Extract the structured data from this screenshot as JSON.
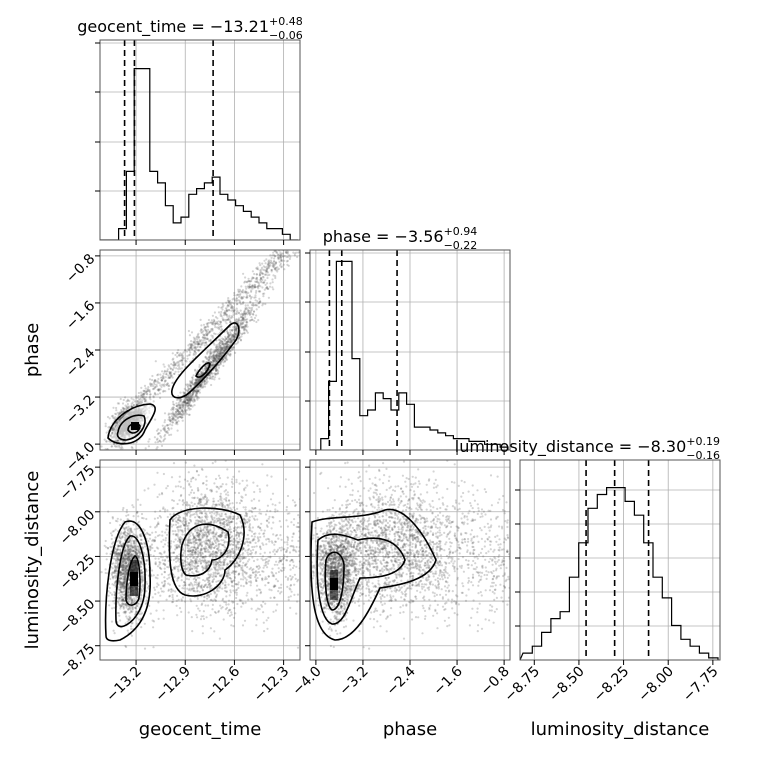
{
  "chart_data": {
    "type": "corner",
    "parameters": [
      {
        "name": "geocent_time",
        "range": [
          -13.42,
          -12.2
        ],
        "ticks": [
          -13.2,
          -12.9,
          -12.6,
          -12.3
        ],
        "tick_labels": [
          "−13.2",
          "−12.9",
          "−12.6",
          "−12.3"
        ],
        "quantiles": [
          -13.27,
          -13.21,
          -12.73
        ],
        "title_main": "geocent_time = −13.21",
        "title_plus": "+0.48",
        "title_minus": "−0.06",
        "hist_counts": [
          0,
          0,
          2,
          12,
          30,
          30,
          12,
          10,
          6,
          3,
          4,
          8,
          9,
          10,
          11,
          8,
          7,
          6,
          5,
          4,
          3,
          2,
          2,
          1,
          0
        ]
      },
      {
        "name": "phase",
        "range": [
          -4.1,
          -0.7
        ],
        "ticks": [
          -4.0,
          -3.2,
          -2.4,
          -1.6,
          -0.8
        ],
        "tick_labels": [
          "−4.0",
          "−3.2",
          "−2.4",
          "−1.6",
          "−0.8"
        ],
        "quantiles": [
          -3.77,
          -3.56,
          -2.62
        ],
        "title_main": "phase = −3.56",
        "title_plus": "+0.94",
        "title_minus": "−0.22",
        "hist_counts": [
          0,
          2,
          12,
          33,
          33,
          16,
          6,
          7,
          10,
          9,
          7,
          10,
          8,
          4,
          4,
          3.5,
          3,
          2.5,
          2,
          2,
          1.5,
          1.5,
          1,
          1,
          0.5
        ]
      },
      {
        "name": "luminosity_distance",
        "range": [
          -8.83,
          -7.71
        ],
        "ticks": [
          -8.75,
          -8.5,
          -8.25,
          -8.0,
          -7.75
        ],
        "tick_labels": [
          "−8.75",
          "−8.50",
          "−8.25",
          "−8.00",
          "−7.75"
        ],
        "quantiles": [
          -8.46,
          -8.3,
          -8.11
        ],
        "title_main": "luminosity_distance = −8.30",
        "title_plus": "+0.19",
        "title_minus": "−0.16",
        "hist_counts": [
          1,
          2,
          4,
          6,
          7,
          12,
          17,
          22,
          24,
          25,
          25,
          23,
          21,
          17,
          12,
          9,
          5,
          3,
          2,
          1,
          0.3
        ]
      }
    ],
    "hist_ymax": [
      35,
      35,
      29
    ]
  }
}
